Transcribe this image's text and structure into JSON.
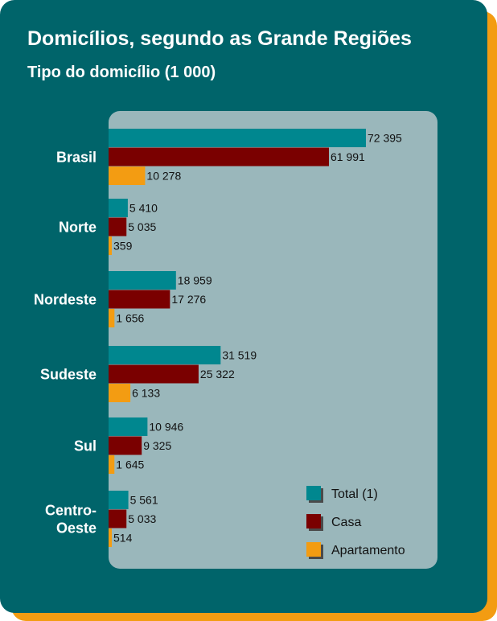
{
  "title": "Domicílios, segundo as Grande Regiões",
  "subtitle": "Tipo do domicílio (1 000)",
  "colors": {
    "background": "#00646a",
    "accent_shadow": "#f39c12",
    "panel": "#9ab7bb",
    "total": "#00878f",
    "casa": "#7a0000",
    "apartamento": "#f39c12"
  },
  "chart_data": {
    "type": "bar",
    "orientation": "horizontal",
    "categories": [
      "Brasil",
      "Norte",
      "Nordeste",
      "Sudeste",
      "Sul",
      "Centro-Oeste"
    ],
    "category_labels": [
      [
        "Brasil"
      ],
      [
        "Norte"
      ],
      [
        "Nordeste"
      ],
      [
        "Sudeste"
      ],
      [
        "Sul"
      ],
      [
        "Centro-",
        "Oeste"
      ]
    ],
    "series": [
      {
        "name": "Total (1)",
        "values": [
          72395,
          5410,
          18959,
          31519,
          10946,
          5561
        ],
        "labels": [
          "72 395",
          "5 410",
          "18 959",
          "31 519",
          "10 946",
          "5 561"
        ]
      },
      {
        "name": "Casa",
        "values": [
          61991,
          5035,
          17276,
          25322,
          9325,
          5033
        ],
        "labels": [
          "61 991",
          "5 035",
          "17 276",
          "25 322",
          "9 325",
          "5 033"
        ]
      },
      {
        "name": "Apartamento",
        "values": [
          10278,
          359,
          1656,
          6133,
          1645,
          514
        ],
        "labels": [
          "10 278",
          "359",
          "1 656",
          "6 133",
          "1 645",
          "514"
        ]
      }
    ],
    "xlim": [
      0,
      72395
    ],
    "grid": false,
    "legend_position": "bottom-right"
  }
}
